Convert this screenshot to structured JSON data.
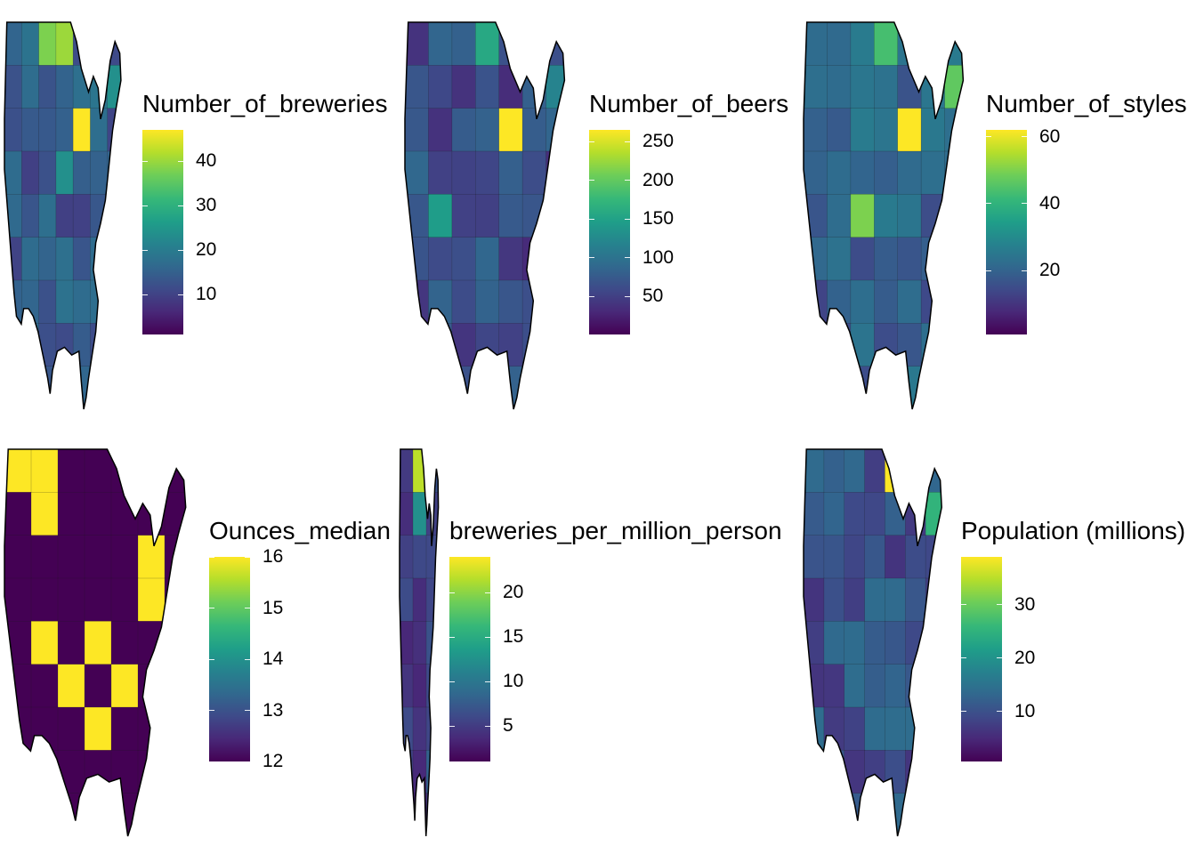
{
  "chart_data": [
    {
      "type": "choropleth",
      "title": "",
      "legend_title": "Number_of_breweries",
      "range": [
        1,
        47
      ],
      "ticks": [
        10,
        20,
        30,
        40
      ],
      "tick_labels": [
        "10",
        "20",
        "30",
        "40"
      ],
      "legend_position": "right"
    },
    {
      "type": "choropleth",
      "title": "",
      "legend_title": "Number_of_beers",
      "range": [
        1,
        265
      ],
      "ticks": [
        50,
        100,
        150,
        200,
        250
      ],
      "tick_labels": [
        "50",
        "100",
        "150",
        "200",
        "250"
      ],
      "legend_position": "right"
    },
    {
      "type": "choropleth",
      "title": "",
      "legend_title": "Number_of_styles",
      "range": [
        1,
        62
      ],
      "ticks": [
        20,
        40,
        60
      ],
      "tick_labels": [
        "20",
        "40",
        "60"
      ],
      "legend_position": "right"
    },
    {
      "type": "choropleth",
      "title": "",
      "legend_title": "Ounces_median",
      "range": [
        12,
        16
      ],
      "ticks": [
        12,
        13,
        14,
        15,
        16
      ],
      "tick_labels": [
        "12",
        "13",
        "14",
        "15",
        "16"
      ],
      "legend_position": "right"
    },
    {
      "type": "choropleth",
      "title": "",
      "legend_title": "breweries_per_million_person",
      "range": [
        1,
        24
      ],
      "ticks": [
        5,
        10,
        15,
        20
      ],
      "tick_labels": [
        "5",
        "10",
        "15",
        "20"
      ],
      "legend_position": "right"
    },
    {
      "type": "choropleth",
      "title": "",
      "legend_title": "Population (millions)",
      "range": [
        0.6,
        39
      ],
      "ticks": [
        10,
        20,
        30
      ],
      "tick_labels": [
        "10",
        "20",
        "30"
      ],
      "legend_position": "right"
    }
  ],
  "colorscale": "viridis",
  "colors": {
    "low": "#440154",
    "high": "#fde725",
    "border": "#000000"
  }
}
